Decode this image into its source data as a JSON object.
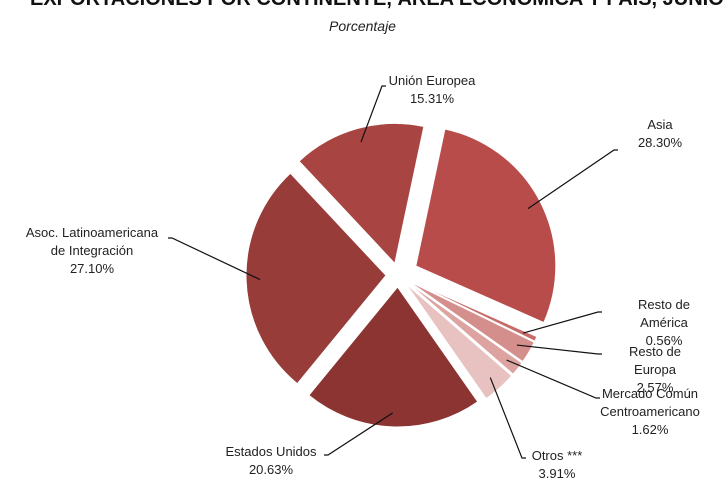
{
  "chart_data": {
    "type": "pie",
    "title": "EXPORTACIONES POR CONTINENTE, ÁREA ECONÓMICA Y PAÍS, JUNIO",
    "subtitle": "Porcentaje",
    "categories": [
      "Asia",
      "Resto de América",
      "Resto de Europa",
      "Mercado Común\nCentroamericano",
      "Otros ***",
      "Estados Unidos",
      "Asoc. Latinoamericana\nde Integración",
      "Unión Europea"
    ],
    "values": [
      28.3,
      0.56,
      2.57,
      1.62,
      3.91,
      20.63,
      27.1,
      15.31
    ],
    "value_labels": [
      "28.30%",
      "0.56%",
      "2.57%",
      "1.62%",
      "3.91%",
      "20.63%",
      "27.10%",
      "15.31%"
    ],
    "colors": [
      "#b84c4a",
      "#c86a68",
      "#d48f8d",
      "#dca3a1",
      "#e8c2c1",
      "#8b3432",
      "#983c3a",
      "#a84543"
    ]
  }
}
